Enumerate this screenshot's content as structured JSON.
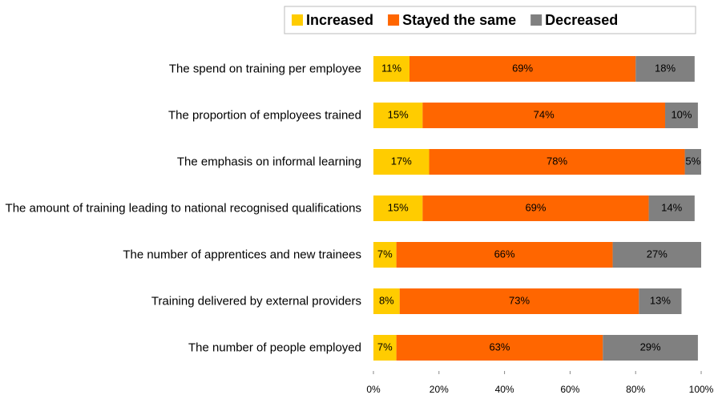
{
  "chart_data": {
    "type": "stacked_barh",
    "categories": [
      "The spend on training per employee",
      "The proportion of employees trained",
      "The emphasis on informal learning",
      "The amount of training leading to national recognised qualifications",
      "The number of apprentices and new trainees",
      "Training delivered by external providers",
      "The number of people employed"
    ],
    "series": [
      {
        "name": "Increased",
        "color": "#FFCC00",
        "values": [
          11,
          15,
          17,
          15,
          7,
          8,
          7
        ],
        "value_labels": [
          "11%",
          "15%",
          "17%",
          "15%",
          "7%",
          "8%",
          "7%"
        ]
      },
      {
        "name": "Stayed the same",
        "color": "#FF6600",
        "values": [
          69,
          74,
          78,
          69,
          66,
          73,
          63
        ],
        "value_labels": [
          "69%",
          "74%",
          "78%",
          "69%",
          "66%",
          "73%",
          "63%"
        ]
      },
      {
        "name": "Decreased",
        "color": "#808080",
        "values": [
          18,
          10,
          5,
          14,
          27,
          13,
          29
        ],
        "value_labels": [
          "18%",
          "10%",
          "5%",
          "14%",
          "27%",
          "13%",
          "29%"
        ]
      }
    ],
    "xlim": [
      0,
      100
    ],
    "xticks": [
      {
        "value": 0,
        "label": "0%"
      },
      {
        "value": 20,
        "label": "20%"
      },
      {
        "value": 40,
        "label": "40%"
      },
      {
        "value": 60,
        "label": "60%"
      },
      {
        "value": 80,
        "label": "80%"
      },
      {
        "value": 100,
        "label": "100%"
      }
    ],
    "legend": "top"
  }
}
